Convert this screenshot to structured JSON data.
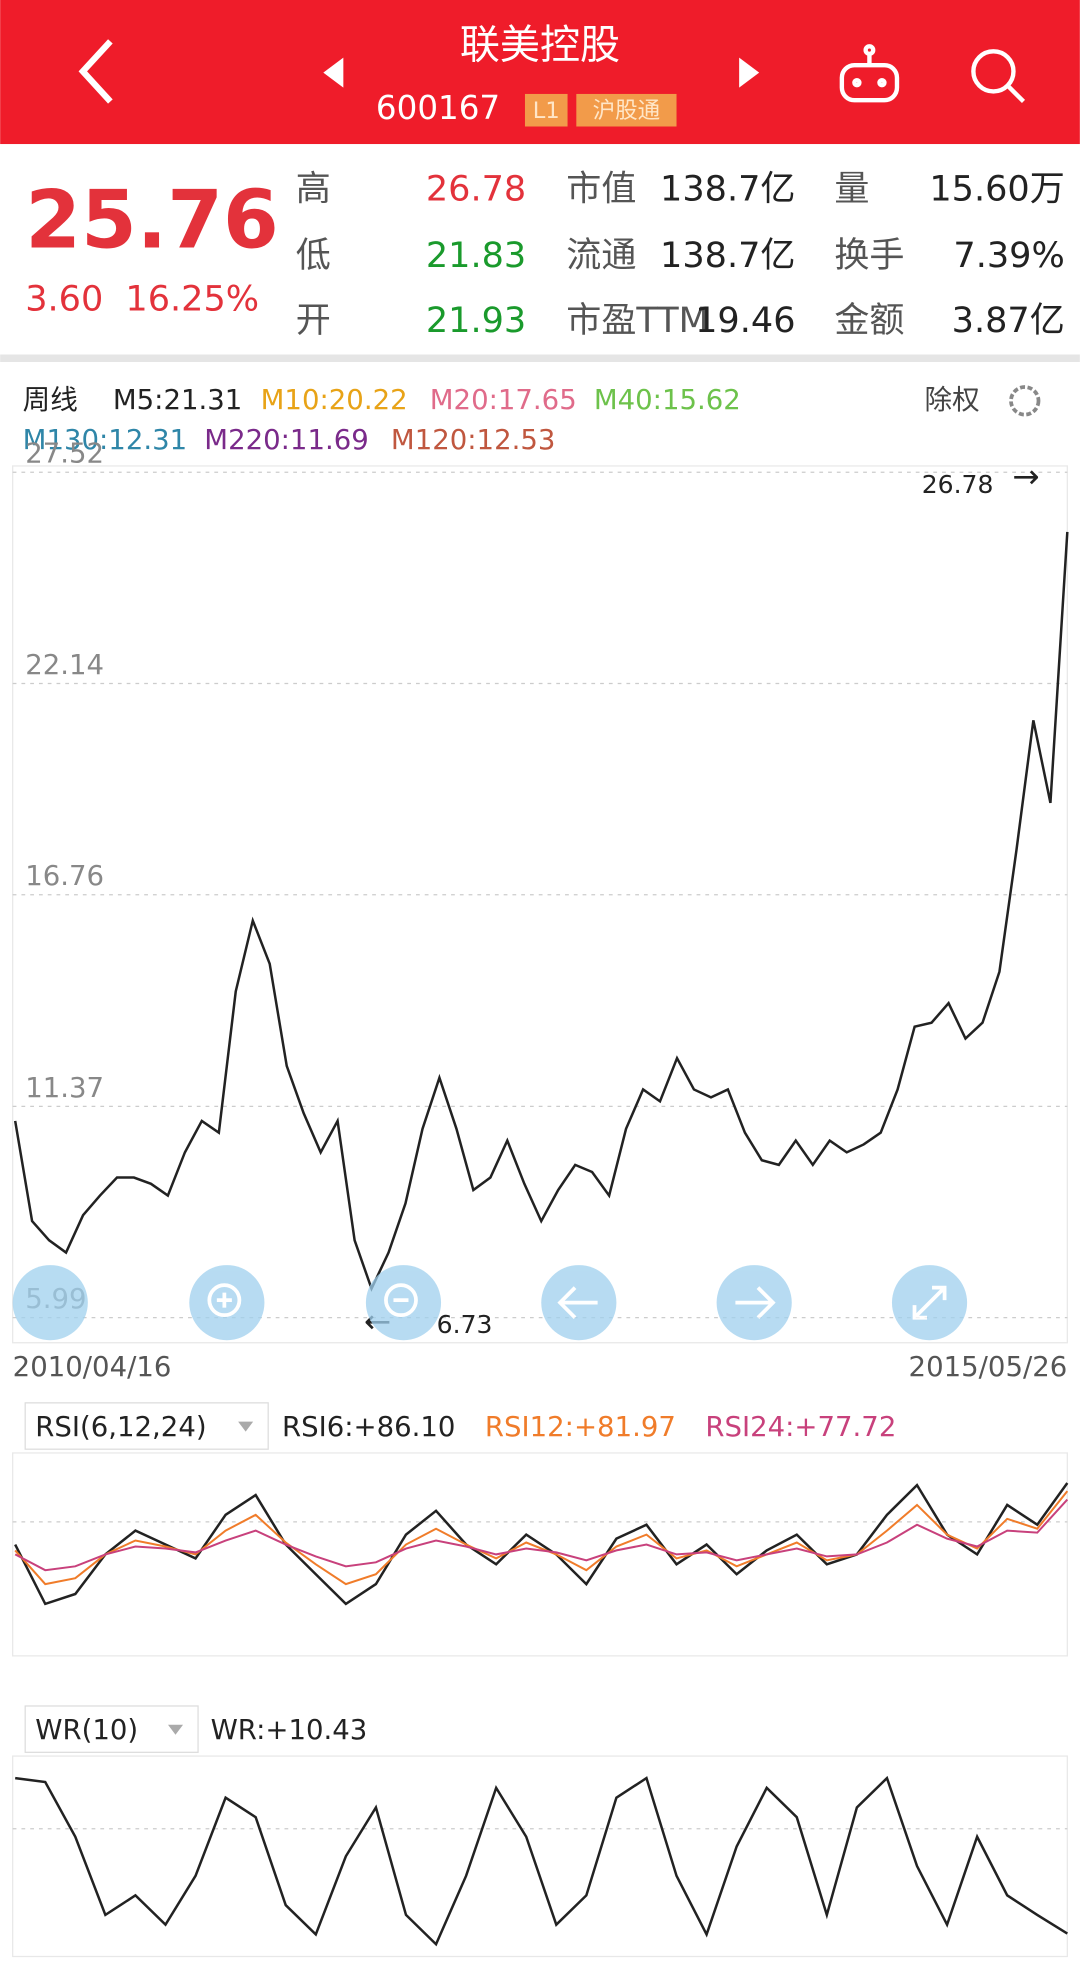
{
  "header": {
    "title": "联美控股",
    "code": "600167",
    "badges": [
      "L1",
      "沪股通"
    ]
  },
  "quote": {
    "price": "25.76",
    "change": "3.60",
    "change_pct": "16.25%",
    "stats": [
      [
        "高",
        "26.78",
        "市值",
        "138.7亿",
        "量",
        "15.60万"
      ],
      [
        "低",
        "21.83",
        "流通",
        "138.7亿",
        "换手",
        "7.39%"
      ],
      [
        "开",
        "21.93",
        "市盈TTM",
        "19.46",
        "金额",
        "3.87亿"
      ]
    ]
  },
  "ma_legend": {
    "period": "周线",
    "items": [
      {
        "text": "M5:21.31",
        "color": "#222222"
      },
      {
        "text": "M10:20.22",
        "color": "#e8a317"
      },
      {
        "text": "M20:17.65",
        "color": "#e06b8a"
      },
      {
        "text": "M40:15.62",
        "color": "#6dc24b"
      },
      {
        "text": "M130:12.31",
        "color": "#2f86a8"
      },
      {
        "text": "M220:11.69",
        "color": "#7a2a8a"
      },
      {
        "text": "M120:12.53",
        "color": "#c0573f"
      }
    ],
    "adjust": "除权"
  },
  "chart_data": [
    {
      "type": "line",
      "color": "#222222",
      "ylim": [
        5.99,
        27.52
      ],
      "yticks": [
        5.99,
        11.37,
        16.76,
        22.14,
        27.52
      ],
      "grid": true,
      "x_labels": [
        "2010/04/16",
        "2015/05/26"
      ],
      "annotations": [
        {
          "text": "26.78",
          "arrow": "→"
        },
        {
          "text": "6.73",
          "arrow": "←"
        }
      ],
      "values": [
        11.0,
        8.45,
        7.96,
        7.65,
        8.6,
        9.1,
        9.56,
        9.56,
        9.4,
        9.1,
        10.2,
        11.0,
        10.7,
        14.3,
        16.1,
        15.0,
        12.4,
        11.2,
        10.2,
        11.0,
        7.96,
        6.73,
        7.65,
        8.9,
        10.8,
        12.1,
        10.8,
        9.24,
        9.56,
        10.5,
        9.4,
        8.45,
        9.24,
        9.88,
        9.7,
        9.1,
        10.8,
        11.8,
        11.5,
        12.6,
        11.8,
        11.6,
        11.8,
        10.7,
        10.0,
        9.88,
        10.5,
        9.88,
        10.5,
        10.2,
        10.4,
        10.7,
        11.8,
        13.4,
        13.5,
        14.0,
        13.1,
        13.5,
        14.8,
        17.9,
        21.2,
        19.1,
        26.0
      ]
    },
    {
      "type": "line",
      "indicator": "RSI(6,12,24)",
      "ylim": [
        0,
        100
      ],
      "series": [
        {
          "name": "RSI6:+86.10",
          "color": "#222222",
          "values": [
            55,
            25,
            30,
            50,
            62,
            55,
            48,
            70,
            80,
            55,
            40,
            25,
            35,
            60,
            72,
            55,
            45,
            60,
            50,
            35,
            58,
            65,
            45,
            55,
            40,
            52,
            60,
            45,
            50,
            70,
            85,
            60,
            50,
            75,
            65,
            86.1
          ]
        },
        {
          "name": "RSI12:+81.97",
          "color": "#f07c2a",
          "values": [
            52,
            35,
            38,
            50,
            57,
            54,
            50,
            62,
            70,
            56,
            45,
            35,
            40,
            55,
            63,
            55,
            48,
            56,
            50,
            42,
            54,
            60,
            48,
            52,
            44,
            50,
            56,
            47,
            50,
            62,
            75,
            60,
            53,
            68,
            63,
            81.97
          ]
        },
        {
          "name": "RSI24:+77.72",
          "color": "#c8417c",
          "values": [
            50,
            42,
            44,
            50,
            54,
            53,
            51,
            57,
            62,
            55,
            49,
            44,
            46,
            53,
            57,
            54,
            50,
            53,
            51,
            47,
            52,
            55,
            50,
            51,
            47,
            50,
            53,
            49,
            50,
            56,
            65,
            58,
            54,
            62,
            61,
            77.72
          ]
        }
      ]
    },
    {
      "type": "line",
      "indicator": "WR(10)",
      "ylim": [
        0,
        100
      ],
      "series": [
        {
          "name": "WR:+10.43",
          "color": "#222222",
          "values": [
            90,
            88,
            60,
            20,
            30,
            15,
            40,
            80,
            70,
            25,
            10,
            50,
            75,
            20,
            5,
            40,
            85,
            60,
            15,
            30,
            80,
            90,
            40,
            10,
            55,
            85,
            70,
            20,
            75,
            90,
            45,
            15,
            60,
            30,
            20,
            10.43
          ]
        }
      ]
    }
  ]
}
